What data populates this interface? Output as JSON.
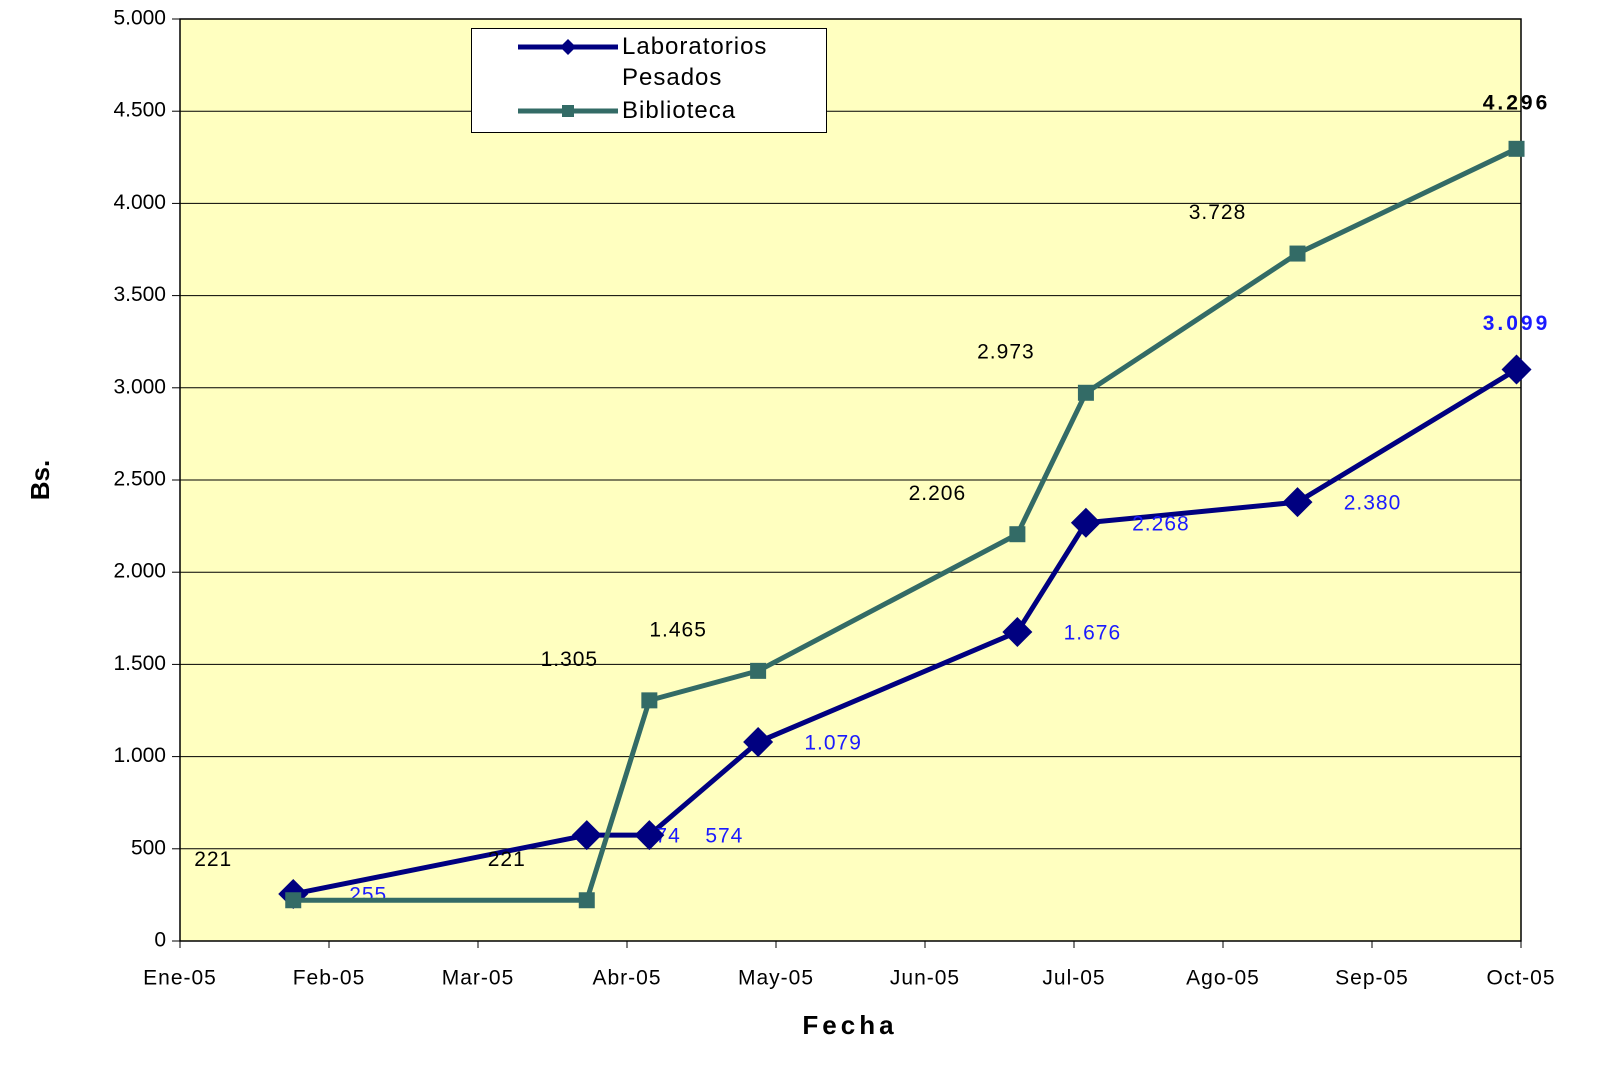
{
  "chart_data": {
    "type": "line",
    "x_label": "Fecha",
    "y_label": "Bs.",
    "x": [
      0.76,
      2.73,
      3.15,
      3.88,
      5.62,
      6.08,
      7.5,
      8.97
    ],
    "xlim": [
      0,
      9
    ],
    "xticks": [
      {
        "value": 0,
        "label": "Ene-05"
      },
      {
        "value": 1,
        "label": "Feb-05"
      },
      {
        "value": 2,
        "label": "Mar-05"
      },
      {
        "value": 3,
        "label": "Abr-05"
      },
      {
        "value": 4,
        "label": "May-05"
      },
      {
        "value": 5,
        "label": "Jun-05"
      },
      {
        "value": 6,
        "label": "Jul-05"
      },
      {
        "value": 7,
        "label": "Ago-05"
      },
      {
        "value": 8,
        "label": "Sep-05"
      },
      {
        "value": 9,
        "label": "Oct-05"
      }
    ],
    "ylim": [
      0,
      5000
    ],
    "yticks": [
      0,
      500,
      {
        "value": 1000,
        "label": "1.000"
      },
      {
        "value": 1500,
        "label": "1.500"
      },
      {
        "value": 2000,
        "label": "2.000"
      },
      {
        "value": 2500,
        "label": "2.500"
      },
      {
        "value": 3000,
        "label": "3.000"
      },
      {
        "value": 3500,
        "label": "3.500"
      },
      {
        "value": 4000,
        "label": "4.000"
      },
      {
        "value": 4500,
        "label": "4.500"
      },
      {
        "value": 5000,
        "label": "5.000"
      }
    ],
    "grid": true,
    "legend": "top",
    "series": [
      {
        "name": "Laboratorios Pesados",
        "color": "#000080",
        "marker": "diamond",
        "label_color": "#1a1aff",
        "values": [
          255,
          574,
          574,
          1079,
          1676,
          2268,
          2380,
          3099
        ],
        "value_labels": [
          "255",
          "574",
          "574",
          "1.079",
          "1.676",
          "2.268",
          "2.380",
          "3.099"
        ]
      },
      {
        "name": "Biblioteca",
        "color": "#336b66",
        "marker": "square",
        "label_color": "#000000",
        "values": [
          221,
          221,
          1305,
          1465,
          2206,
          2973,
          3728,
          4296
        ],
        "value_labels": [
          "221",
          "221",
          "1.305",
          "1.465",
          "2.206",
          "2.973",
          "3.728",
          "4.296"
        ]
      }
    ]
  }
}
